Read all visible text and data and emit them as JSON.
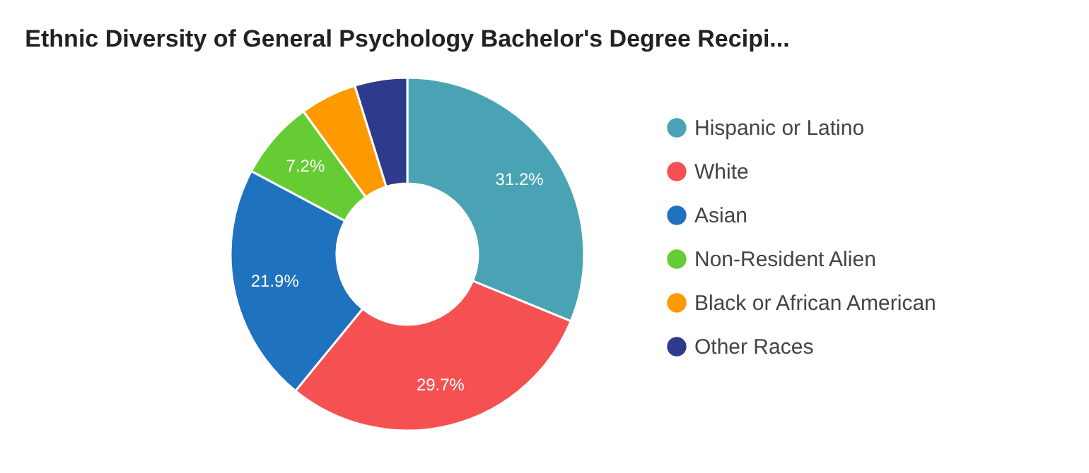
{
  "chart_data": {
    "type": "donut",
    "title": "Ethnic Diversity of General Psychology Bachelor's Degree Recipi...",
    "categories": [
      "Hispanic or Latino",
      "White",
      "Asian",
      "Non-Resident Alien",
      "Black or African American",
      "Other Races"
    ],
    "values": [
      31.2,
      29.7,
      21.9,
      7.2,
      5.2,
      4.8
    ],
    "value_labels": [
      "31.2%",
      "29.7%",
      "21.9%",
      "7.2%",
      null,
      null
    ],
    "colors": [
      "#4aa3b5",
      "#f55152",
      "#1f72bd",
      "#66cc33",
      "#ff9900",
      "#2e3a8c"
    ],
    "legend": "right"
  }
}
